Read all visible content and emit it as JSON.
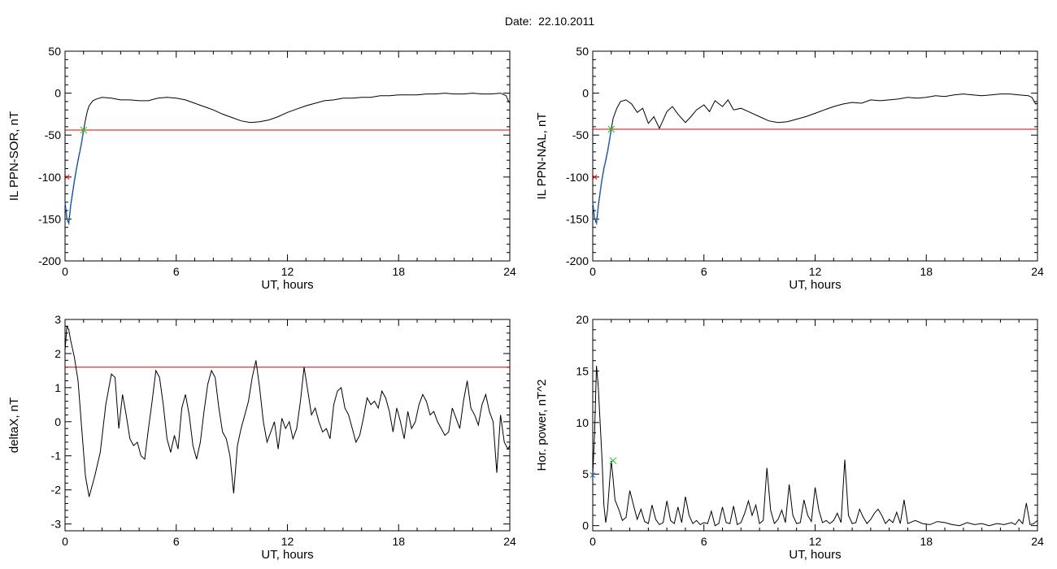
{
  "header": {
    "date_label": "Date:  22.10.2011"
  },
  "colors": {
    "trace": "#000000",
    "threshold": "#e00000",
    "highlight": "#1f6fd0",
    "marker": "#2fd22f",
    "start_marker": "#e00000"
  },
  "chart_data": [
    {
      "id": "ppn-sor",
      "type": "line",
      "xlabel": "UT, hours",
      "ylabel": "IL PPN-SOR, nT",
      "xlim": [
        0,
        24
      ],
      "ylim": [
        -200,
        50
      ],
      "xticks": [
        "0",
        "6",
        "12",
        "18",
        "24"
      ],
      "yticks": [
        "50",
        "0",
        "-50",
        "-100",
        "-150",
        "-200"
      ],
      "threshold": -44,
      "start_marker": [
        0.1,
        -100
      ],
      "marker": [
        1.0,
        -44
      ],
      "highlight_range": [
        0.0,
        1.05
      ],
      "series": [
        {
          "x": [
            0.0,
            0.1,
            0.2,
            0.3,
            0.4,
            0.5,
            0.6,
            0.7,
            0.8,
            0.9,
            1.0,
            1.1,
            1.2,
            1.3,
            1.5,
            1.7,
            2.0,
            2.5,
            3.0,
            3.5,
            4.0,
            4.5,
            5.0,
            5.5,
            6.0,
            6.5,
            7.0,
            7.5,
            8.0,
            8.5,
            9.0,
            9.5,
            10.0,
            10.5,
            11.0,
            11.5,
            12.0,
            12.5,
            13.0,
            13.5,
            14.0,
            14.5,
            15.0,
            15.5,
            16.0,
            16.5,
            17.0,
            17.5,
            18.0,
            18.5,
            19.0,
            19.5,
            20.0,
            20.5,
            21.0,
            21.5,
            22.0,
            22.5,
            23.0,
            23.5,
            23.7,
            23.8,
            23.9,
            24.0
          ],
          "y": [
            -130,
            -150,
            -155,
            -135,
            -120,
            -105,
            -92,
            -80,
            -70,
            -58,
            -44,
            -32,
            -22,
            -15,
            -9,
            -7,
            -5,
            -6,
            -8,
            -8,
            -9,
            -9,
            -6,
            -5,
            -6,
            -8,
            -12,
            -16,
            -20,
            -25,
            -29,
            -33,
            -35,
            -34,
            -32,
            -28,
            -23,
            -19,
            -15,
            -12,
            -9,
            -8,
            -6,
            -6,
            -5,
            -5,
            -3,
            -3,
            -2,
            -2,
            -2,
            -1,
            -1,
            0,
            -1,
            -1,
            0,
            -1,
            -1,
            0,
            -2,
            -3,
            -8,
            -12
          ]
        }
      ]
    },
    {
      "id": "ppn-nal",
      "type": "line",
      "xlabel": "UT, hours",
      "ylabel": "IL PPN-NAL, nT",
      "xlim": [
        0,
        24
      ],
      "ylim": [
        -200,
        50
      ],
      "xticks": [
        "0",
        "6",
        "12",
        "18",
        "24"
      ],
      "yticks": [
        "50",
        "0",
        "-50",
        "-100",
        "-150",
        "-200"
      ],
      "threshold": -43,
      "start_marker": [
        0.1,
        -100
      ],
      "marker": [
        1.0,
        -43
      ],
      "highlight_range": [
        0.0,
        1.05
      ],
      "series": [
        {
          "x": [
            0.0,
            0.1,
            0.2,
            0.3,
            0.4,
            0.5,
            0.6,
            0.7,
            0.8,
            0.9,
            1.0,
            1.1,
            1.3,
            1.5,
            1.8,
            2.1,
            2.4,
            2.7,
            3.0,
            3.3,
            3.6,
            4.0,
            4.3,
            4.6,
            5.0,
            5.3,
            5.6,
            6.0,
            6.3,
            6.6,
            7.0,
            7.3,
            7.6,
            8.0,
            8.5,
            9.0,
            9.5,
            10.0,
            10.5,
            11.0,
            11.5,
            12.0,
            12.5,
            13.0,
            13.5,
            14.0,
            14.5,
            15.0,
            15.5,
            16.0,
            16.5,
            17.0,
            17.5,
            18.0,
            18.5,
            19.0,
            19.5,
            20.0,
            20.5,
            21.0,
            21.5,
            22.0,
            22.5,
            23.0,
            23.5,
            23.7,
            23.8,
            23.9,
            24.0
          ],
          "y": [
            -130,
            -150,
            -155,
            -135,
            -118,
            -103,
            -90,
            -80,
            -70,
            -57,
            -43,
            -30,
            -18,
            -10,
            -8,
            -13,
            -23,
            -18,
            -36,
            -28,
            -42,
            -22,
            -16,
            -25,
            -35,
            -28,
            -20,
            -14,
            -22,
            -9,
            -16,
            -8,
            -20,
            -18,
            -23,
            -28,
            -33,
            -35,
            -34,
            -31,
            -28,
            -24,
            -20,
            -16,
            -13,
            -11,
            -12,
            -8,
            -9,
            -8,
            -7,
            -5,
            -6,
            -5,
            -3,
            -4,
            -2,
            -1,
            -2,
            -3,
            -2,
            -1,
            -1,
            -2,
            -3,
            -5,
            -9,
            -13,
            -12
          ]
        }
      ]
    },
    {
      "id": "deltax",
      "type": "line",
      "xlabel": "UT, hours",
      "ylabel": "deltaX, nT",
      "xlim": [
        0,
        24
      ],
      "ylim": [
        -3.2,
        3
      ],
      "xticks": [
        "0",
        "6",
        "12",
        "18",
        "24"
      ],
      "yticks": [
        "3",
        "2",
        "1",
        "0",
        "-1",
        "-2",
        "-3"
      ],
      "threshold": 1.6,
      "series": [
        {
          "x": [
            0.0,
            0.1,
            0.2,
            0.3,
            0.5,
            0.7,
            0.9,
            1.1,
            1.3,
            1.6,
            1.9,
            2.2,
            2.5,
            2.7,
            2.9,
            3.1,
            3.3,
            3.5,
            3.7,
            3.9,
            4.1,
            4.3,
            4.5,
            4.7,
            4.9,
            5.1,
            5.3,
            5.5,
            5.7,
            5.9,
            6.1,
            6.3,
            6.5,
            6.7,
            6.9,
            7.1,
            7.3,
            7.5,
            7.7,
            7.9,
            8.1,
            8.3,
            8.5,
            8.7,
            8.9,
            9.1,
            9.3,
            9.5,
            9.7,
            9.9,
            10.1,
            10.3,
            10.5,
            10.7,
            10.9,
            11.1,
            11.3,
            11.5,
            11.7,
            11.9,
            12.1,
            12.3,
            12.5,
            12.7,
            12.9,
            13.1,
            13.3,
            13.5,
            13.7,
            13.9,
            14.1,
            14.3,
            14.5,
            14.7,
            14.9,
            15.1,
            15.3,
            15.5,
            15.7,
            15.9,
            16.1,
            16.3,
            16.5,
            16.7,
            16.9,
            17.1,
            17.3,
            17.5,
            17.7,
            17.9,
            18.1,
            18.3,
            18.5,
            18.7,
            18.9,
            19.1,
            19.3,
            19.5,
            19.7,
            19.9,
            20.1,
            20.3,
            20.5,
            20.7,
            20.9,
            21.1,
            21.3,
            21.5,
            21.7,
            21.9,
            22.1,
            22.3,
            22.5,
            22.7,
            22.9,
            23.1,
            23.3,
            23.5,
            23.7,
            23.9,
            24.0
          ],
          "y": [
            2.1,
            2.8,
            2.7,
            2.4,
            1.9,
            1.2,
            -0.2,
            -1.6,
            -2.2,
            -1.6,
            -0.9,
            0.5,
            1.4,
            1.3,
            -0.2,
            0.8,
            0.2,
            -0.5,
            -0.7,
            -0.6,
            -1.0,
            -1.1,
            -0.2,
            0.6,
            1.5,
            1.3,
            0.5,
            -0.5,
            -0.9,
            -0.4,
            -0.8,
            0.4,
            0.8,
            0.2,
            -0.7,
            -1.1,
            -0.6,
            0.3,
            1.1,
            1.5,
            1.3,
            0.4,
            -0.3,
            -0.5,
            -1.0,
            -2.1,
            -0.7,
            -0.2,
            0.2,
            0.6,
            1.3,
            1.8,
            1.0,
            0.0,
            -0.6,
            -0.3,
            0.0,
            -0.8,
            0.1,
            -0.2,
            0.0,
            -0.5,
            -0.2,
            0.6,
            1.6,
            0.9,
            0.2,
            0.4,
            0.0,
            -0.3,
            -0.2,
            -0.5,
            0.5,
            0.9,
            1.0,
            0.4,
            0.2,
            -0.2,
            -0.6,
            -0.4,
            0.1,
            0.7,
            0.5,
            0.6,
            0.4,
            0.9,
            0.7,
            0.3,
            -0.3,
            0.4,
            0.0,
            -0.5,
            0.3,
            -0.2,
            0.0,
            0.5,
            0.8,
            0.6,
            0.2,
            0.3,
            0.0,
            -0.2,
            -0.4,
            -0.3,
            0.4,
            0.1,
            -0.2,
            0.6,
            1.2,
            0.4,
            0.2,
            -0.1,
            0.5,
            0.8,
            0.3,
            0.0,
            -1.5,
            0.2,
            -0.6,
            -0.8,
            -0.7
          ]
        }
      ]
    },
    {
      "id": "hor-power",
      "type": "line",
      "xlabel": "UT, hours",
      "ylabel": "Hor. power, nT^2",
      "xlim": [
        0,
        24
      ],
      "ylim": [
        -0.5,
        20
      ],
      "xticks": [
        "0",
        "6",
        "12",
        "18",
        "24"
      ],
      "yticks": [
        "20",
        "15",
        "10",
        "5",
        "0"
      ],
      "marker": [
        1.1,
        6.3
      ],
      "start_marker": [
        0.0,
        4.9
      ],
      "series": [
        {
          "x": [
            0.0,
            0.1,
            0.2,
            0.3,
            0.4,
            0.5,
            0.6,
            0.7,
            0.8,
            0.9,
            1.0,
            1.1,
            1.2,
            1.4,
            1.6,
            1.8,
            2.0,
            2.2,
            2.4,
            2.6,
            2.8,
            3.0,
            3.2,
            3.4,
            3.6,
            3.8,
            4.0,
            4.2,
            4.4,
            4.6,
            4.8,
            5.0,
            5.2,
            5.4,
            5.6,
            5.8,
            6.0,
            6.2,
            6.4,
            6.6,
            6.8,
            7.0,
            7.2,
            7.4,
            7.6,
            7.8,
            8.0,
            8.2,
            8.4,
            8.6,
            8.8,
            9.0,
            9.2,
            9.4,
            9.6,
            9.8,
            10.0,
            10.2,
            10.4,
            10.6,
            10.8,
            11.0,
            11.2,
            11.4,
            11.6,
            11.8,
            12.0,
            12.2,
            12.4,
            12.6,
            12.8,
            13.0,
            13.2,
            13.4,
            13.6,
            13.8,
            14.0,
            14.2,
            14.4,
            14.6,
            14.8,
            15.0,
            15.2,
            15.4,
            15.6,
            15.8,
            16.0,
            16.2,
            16.4,
            16.6,
            16.8,
            17.0,
            17.4,
            17.8,
            18.2,
            18.6,
            19.0,
            19.4,
            19.8,
            20.2,
            20.6,
            21.0,
            21.4,
            21.8,
            22.2,
            22.6,
            22.8,
            23.0,
            23.2,
            23.4,
            23.6,
            23.8,
            24.0
          ],
          "y": [
            4.9,
            9.0,
            15.5,
            13.5,
            10.0,
            6.5,
            2.0,
            0.3,
            1.5,
            4.0,
            6.3,
            4.5,
            2.5,
            1.6,
            0.5,
            0.8,
            3.4,
            2.0,
            0.6,
            1.6,
            0.4,
            0.2,
            2.0,
            0.6,
            0.1,
            0.3,
            2.4,
            0.5,
            0.2,
            1.8,
            0.3,
            2.8,
            1.0,
            0.2,
            0.5,
            0.1,
            0.3,
            0.2,
            1.4,
            0.0,
            0.2,
            1.8,
            0.3,
            0.2,
            1.9,
            0.1,
            0.3,
            1.2,
            2.4,
            1.0,
            2.0,
            0.2,
            0.5,
            5.6,
            1.5,
            0.2,
            0.6,
            1.5,
            0.3,
            4.0,
            1.0,
            0.2,
            0.3,
            2.5,
            1.0,
            0.4,
            3.7,
            1.5,
            0.3,
            0.5,
            0.2,
            0.5,
            1.2,
            0.3,
            6.4,
            1.0,
            0.2,
            0.3,
            1.6,
            0.8,
            0.2,
            0.6,
            1.2,
            1.6,
            1.0,
            0.2,
            0.6,
            0.3,
            1.3,
            0.2,
            2.5,
            0.2,
            0.5,
            0.2,
            0.1,
            0.4,
            0.3,
            0.1,
            0.0,
            0.3,
            0.1,
            0.2,
            0.0,
            0.2,
            0.1,
            0.3,
            0.1,
            0.6,
            0.2,
            2.2,
            0.1,
            0.2,
            0.5
          ]
        }
      ]
    }
  ]
}
